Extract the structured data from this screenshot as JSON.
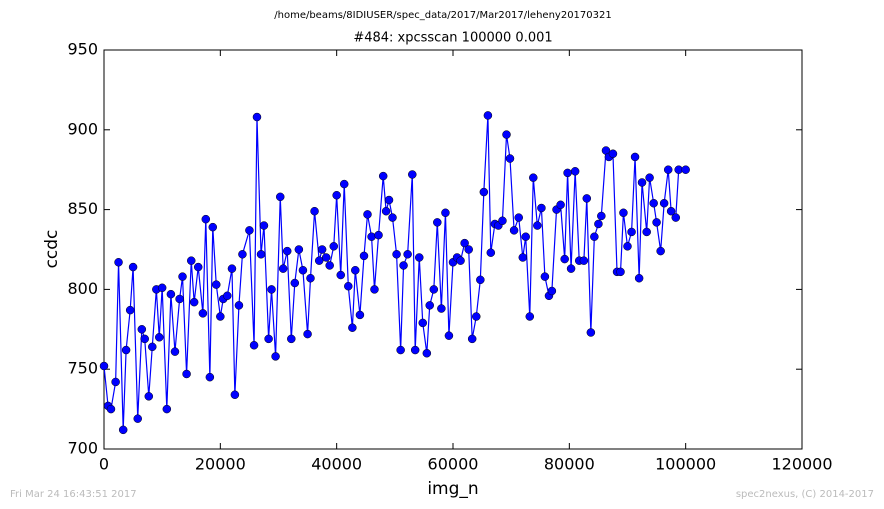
{
  "header": {
    "path": "/home/beams/8IDIUSER/spec_data/2017/Mar2017/leheny20170321"
  },
  "footer": {
    "date": "Fri Mar 24 16:43:51 2017",
    "credit": "spec2nexus, (C) 2014-2017"
  },
  "chart_data": {
    "type": "line",
    "title": "#484: xpcsscan 100000 0.001",
    "xlabel": "img_n",
    "ylabel": "ccdc",
    "color": "#0000ff",
    "markers": true,
    "x": [
      0,
      700,
      1200,
      2000,
      2500,
      3300,
      3800,
      4500,
      5000,
      5800,
      6500,
      7000,
      7700,
      8300,
      9000,
      9500,
      10000,
      10800,
      11500,
      12200,
      13000,
      13500,
      14200,
      15000,
      15500,
      16200,
      17000,
      17500,
      18200,
      18700,
      19300,
      20000,
      20500,
      21200,
      22000,
      22500,
      23200,
      23800,
      25000,
      25800,
      26300,
      27000,
      27500,
      28300,
      28800,
      29500,
      30300,
      30800,
      31500,
      32200,
      32800,
      33500,
      34200,
      35000,
      35500,
      36200,
      37000,
      37500,
      38200,
      38800,
      39500,
      40000,
      40700,
      41300,
      42000,
      42700,
      43200,
      44000,
      44700,
      45300,
      46000,
      46500,
      47200,
      48000,
      48500,
      49000,
      49600,
      50300,
      51000,
      51500,
      52200,
      53000,
      53500,
      54200,
      54800,
      55500,
      56000,
      56700,
      57300,
      58000,
      58700,
      59300,
      60000,
      60700,
      61300,
      62000,
      62700,
      63300,
      64000,
      64700,
      65300,
      66000,
      66500,
      67200,
      67800,
      68500,
      69200,
      69800,
      70500,
      71300,
      72000,
      72500,
      73200,
      73800,
      74500,
      75200,
      75800,
      76500,
      77000,
      77800,
      78500,
      79200,
      79700,
      80300,
      81000,
      81700,
      82500,
      83000,
      83700,
      84300,
      85000,
      85500,
      86300,
      86800,
      87500,
      88200,
      88800,
      89300,
      90000,
      90700,
      91300,
      92000,
      92500,
      93300,
      93800,
      94500,
      95000,
      95700,
      96300,
      97000,
      97500,
      98300,
      98800,
      100000
    ],
    "values": [
      752,
      727,
      725,
      742,
      817,
      712,
      762,
      787,
      814,
      719,
      775,
      769,
      733,
      764,
      800,
      770,
      801,
      725,
      797,
      761,
      794,
      808,
      747,
      818,
      792,
      814,
      785,
      844,
      745,
      839,
      803,
      783,
      794,
      796,
      813,
      734,
      790,
      822,
      837,
      765,
      908,
      822,
      840,
      769,
      800,
      758,
      858,
      813,
      824,
      769,
      804,
      825,
      812,
      772,
      807,
      849,
      818,
      825,
      820,
      815,
      827,
      859,
      809,
      866,
      802,
      776,
      812,
      784,
      821,
      847,
      833,
      800,
      834,
      871,
      849,
      856,
      845,
      822,
      762,
      815,
      822,
      872,
      762,
      820,
      779,
      760,
      790,
      800,
      842,
      788,
      848,
      771,
      817,
      820,
      818,
      829,
      825,
      769,
      783,
      806,
      861,
      909,
      823,
      841,
      840,
      843,
      897,
      882,
      837,
      845,
      820,
      833,
      783,
      870,
      840,
      851,
      808,
      796,
      799,
      850,
      853,
      819,
      873,
      813,
      874,
      818,
      818,
      857,
      773,
      833,
      841,
      846,
      887,
      883,
      885,
      811,
      811,
      848,
      827,
      836,
      883,
      807,
      867,
      836,
      870,
      854,
      842,
      824,
      854,
      875,
      849,
      845,
      875,
      875
    ],
    "xlim": [
      0,
      120000
    ],
    "xticks": [
      0,
      20000,
      40000,
      60000,
      80000,
      100000,
      120000
    ],
    "ylim": [
      700,
      950
    ],
    "yticks": [
      700,
      750,
      800,
      850,
      900,
      950
    ],
    "grid": false
  }
}
